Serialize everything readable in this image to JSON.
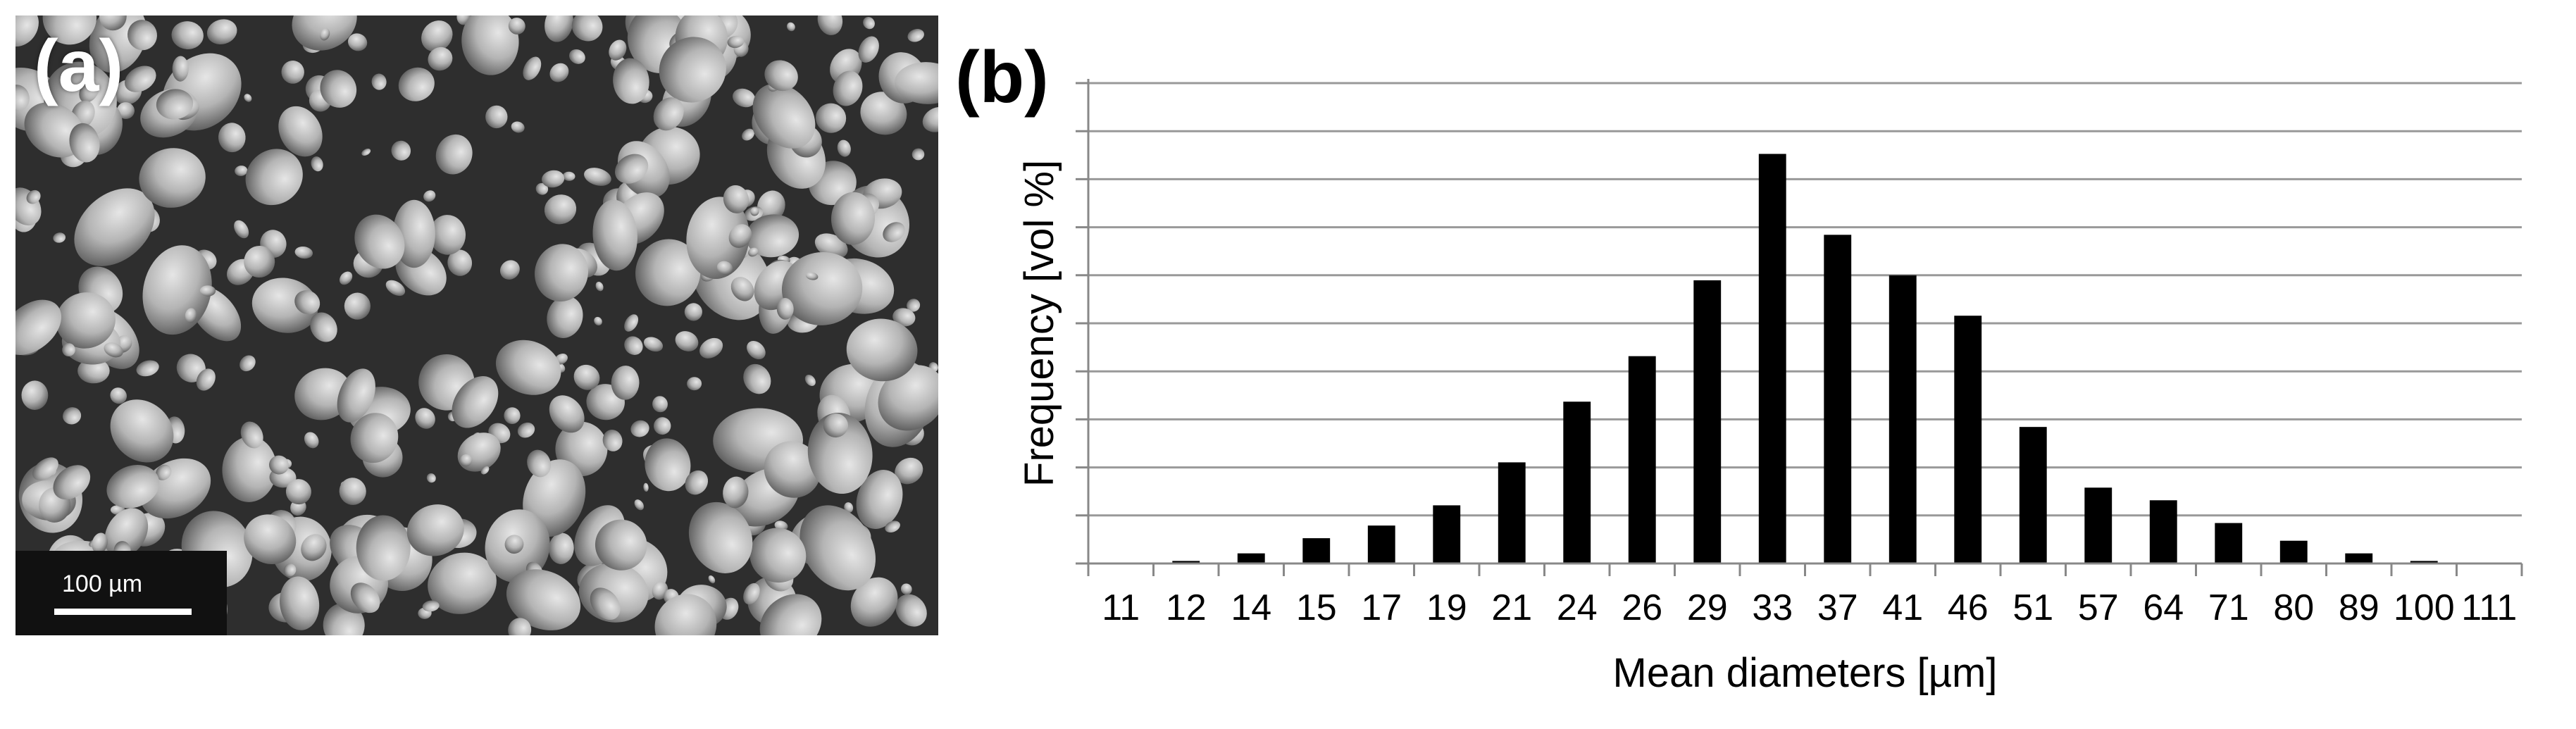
{
  "panel_a": {
    "tag": "(a)",
    "scale_bar_label": "100 µm"
  },
  "panel_b": {
    "tag": "(b)"
  },
  "chart_data": {
    "type": "bar",
    "title": "",
    "xlabel": "Mean diameters [µm]",
    "ylabel": "Frequency [vol %]",
    "categories": [
      "11",
      "12",
      "14",
      "15",
      "17",
      "19",
      "21",
      "24",
      "26",
      "29",
      "33",
      "37",
      "41",
      "46",
      "51",
      "57",
      "64",
      "71",
      "80",
      "89",
      "100",
      "111"
    ],
    "values": [
      0,
      0.05,
      0.2,
      0.5,
      0.75,
      1.15,
      2.0,
      3.2,
      4.1,
      5.6,
      8.1,
      6.5,
      5.7,
      4.9,
      2.7,
      1.5,
      1.25,
      0.8,
      0.45,
      0.2,
      0.05,
      0
    ],
    "ylim": [
      0,
      9.5
    ],
    "y_ticks_shown": false,
    "grid": true,
    "bar_color": "#000000",
    "grid_color": "#999999"
  }
}
